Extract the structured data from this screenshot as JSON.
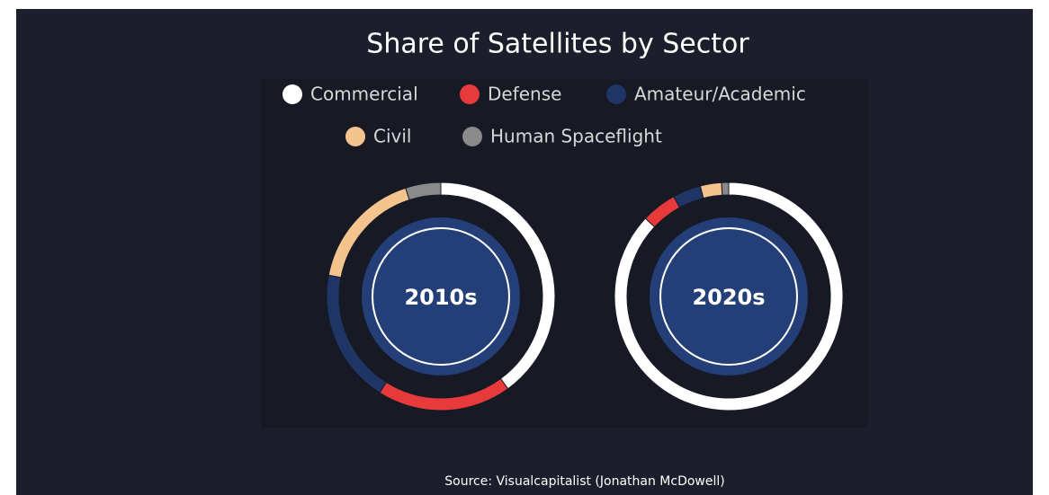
{
  "chart_data": {
    "type": "donut",
    "title": "Share of Satellites by Sector",
    "categories": [
      "Commercial",
      "Defense",
      "Amateur/Academic",
      "Civil",
      "Human Spaceflight"
    ],
    "colors": [
      "#ffffff",
      "#e8393b",
      "#1e3566",
      "#f5c48e",
      "#8a8a8a"
    ],
    "series": [
      {
        "name": "2010s",
        "values": [
          40,
          19,
          19,
          17,
          5
        ]
      },
      {
        "name": "2020s",
        "values": [
          87,
          5,
          4,
          3,
          1
        ]
      }
    ],
    "source": "Source: Visualcapitalist (Jonathan McDowell)"
  }
}
